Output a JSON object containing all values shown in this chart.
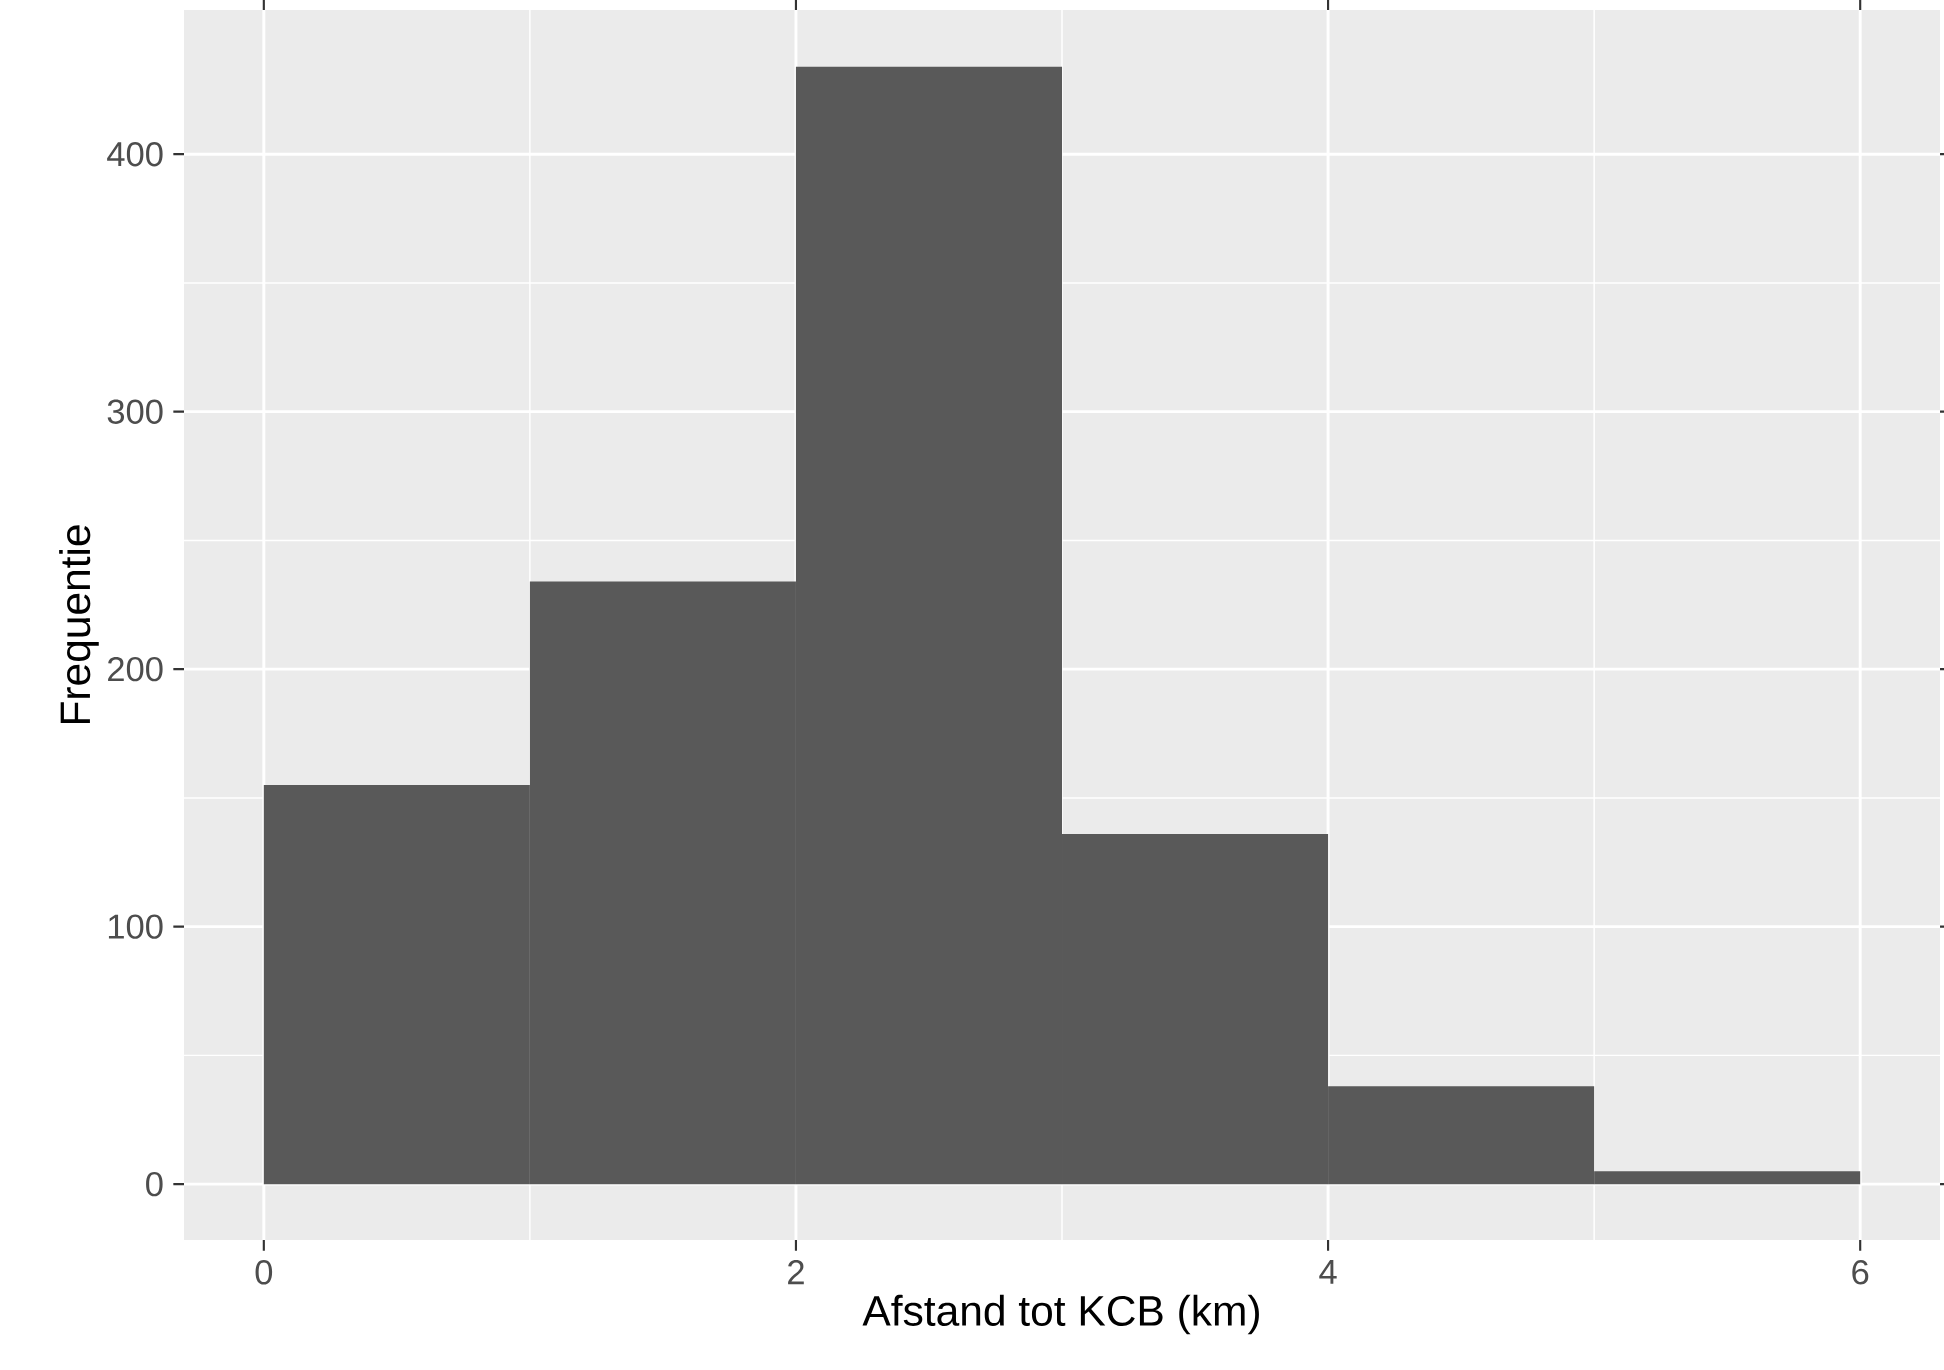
{
  "chart_data": {
    "type": "histogram",
    "xlabel": "Afstand tot KCB (km)",
    "ylabel": "Frequentie",
    "bins": [
      0,
      1,
      2,
      3,
      4,
      5,
      6
    ],
    "values": [
      155,
      234,
      434,
      136,
      38,
      5
    ],
    "color": "#595959",
    "xlim": [
      -0.3,
      6.3
    ],
    "ylim": [
      -21.7,
      456
    ],
    "xticks": [
      0,
      2,
      4,
      6
    ],
    "yticks": [
      0,
      100,
      200,
      300,
      400
    ],
    "grid": true
  }
}
